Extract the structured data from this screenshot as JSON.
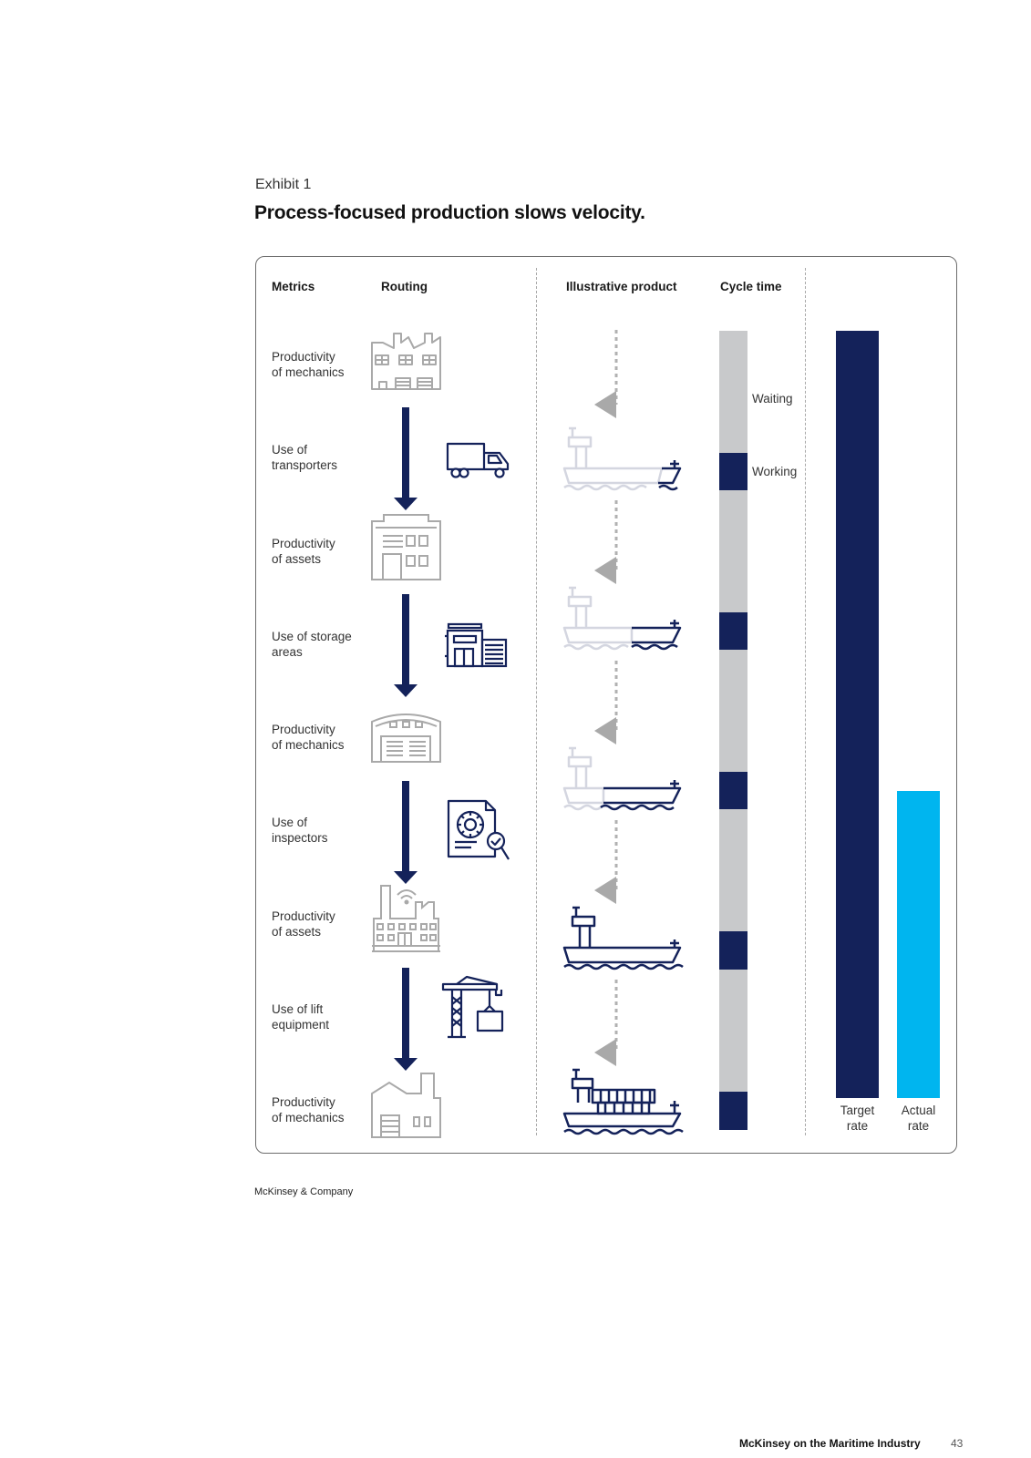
{
  "exhibit": {
    "label": "Exhibit 1",
    "title": "Process-focused production slows velocity."
  },
  "columns": {
    "metrics": "Metrics",
    "routing": "Routing",
    "illustrative_product": "Illustrative product",
    "cycle_time": "Cycle time"
  },
  "metrics": [
    {
      "line1": "Productivity",
      "line2": "of mechanics",
      "icon": "factory-icon"
    },
    {
      "line1": "Use of",
      "line2": "transporters",
      "icon": "truck-icon"
    },
    {
      "line1": "Productivity",
      "line2": "of assets",
      "icon": "building-icon"
    },
    {
      "line1": "Use of storage",
      "line2": "areas",
      "icon": "warehouse-icon"
    },
    {
      "line1": "Productivity",
      "line2": "of mechanics",
      "icon": "hangar-icon"
    },
    {
      "line1": "Use of",
      "line2": "inspectors",
      "icon": "inspection-document-icon"
    },
    {
      "line1": "Productivity",
      "line2": "of assets",
      "icon": "smart-factory-icon"
    },
    {
      "line1": "Use of lift",
      "line2": "equipment",
      "icon": "crane-icon"
    },
    {
      "line1": "Productivity",
      "line2": "of mechanics",
      "icon": "plant-icon"
    }
  ],
  "product_stages": [
    {
      "icon": "ship-hull-stage-1-icon",
      "completion": 0.2
    },
    {
      "icon": "ship-hull-stage-2-icon",
      "completion": 0.45
    },
    {
      "icon": "ship-hull-stage-3-icon",
      "completion": 0.7
    },
    {
      "icon": "ship-complete-icon",
      "completion": 1.0
    },
    {
      "icon": "container-ship-loaded-icon",
      "completion": 1.0
    }
  ],
  "cycle_time": {
    "waiting_label": "Waiting",
    "working_label": "Working",
    "waiting_color": "#c8c9cb",
    "working_color": "#14225a"
  },
  "rates": {
    "target_label_1": "Target",
    "target_label_2": "rate",
    "actual_label_1": "Actual",
    "actual_label_2": "rate",
    "target_color": "#14225a",
    "actual_color": "#00b5ef",
    "actual_to_target_ratio": 0.4
  },
  "colors": {
    "navy": "#14225a",
    "icon_grey": "#a9a9a9",
    "ghost": "#d7d8e2",
    "cyan": "#00b5ef"
  },
  "footer": {
    "source": "McKinsey & Company",
    "publication": "McKinsey on the Maritime Industry",
    "page": "43"
  }
}
